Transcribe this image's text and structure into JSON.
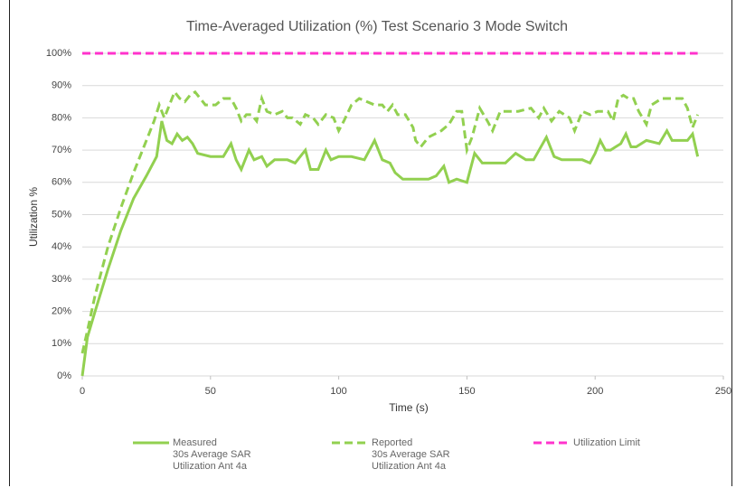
{
  "chart_data": {
    "type": "line",
    "title": "Time-Averaged Utilization (%) Test Scenario 3 Mode Switch",
    "x_label": "Time (s)",
    "y_label": "Utilization %",
    "xlim": [
      0,
      250
    ],
    "xticks": [
      0,
      50,
      100,
      150,
      200,
      250
    ],
    "ylim": [
      0,
      100
    ],
    "yticks": [
      {
        "value": 0,
        "label": "0%"
      },
      {
        "value": 10,
        "label": "10%"
      },
      {
        "value": 20,
        "label": "20%"
      },
      {
        "value": 30,
        "label": "30%"
      },
      {
        "value": 40,
        "label": "40%"
      },
      {
        "value": 50,
        "label": "50%"
      },
      {
        "value": 60,
        "label": "60%"
      },
      {
        "value": 70,
        "label": "70%"
      },
      {
        "value": 80,
        "label": "80%"
      },
      {
        "value": 90,
        "label": "90%"
      },
      {
        "value": 100,
        "label": "100%"
      }
    ],
    "grid": true,
    "series": [
      {
        "name": "Measured\n30s Average SAR\nUtilization Ant 4a",
        "color": "#92d050",
        "dashed": false,
        "x": [
          0,
          2,
          5,
          10,
          15,
          20,
          25,
          29,
          31,
          33,
          35,
          37,
          39,
          41,
          43,
          45,
          50,
          55,
          58,
          60,
          62,
          65,
          67,
          70,
          72,
          75,
          80,
          83,
          87,
          89,
          92,
          95,
          97,
          100,
          105,
          110,
          114,
          117,
          120,
          122,
          125,
          130,
          135,
          138,
          141,
          143,
          146,
          150,
          153,
          156,
          160,
          165,
          169,
          173,
          176,
          181,
          184,
          187,
          190,
          195,
          198,
          200,
          202,
          204,
          206,
          208,
          210,
          212,
          214,
          216,
          220,
          225,
          228,
          230,
          233,
          236,
          238,
          240
        ],
        "values": [
          0,
          12,
          20,
          33,
          45,
          55,
          62,
          68,
          79,
          73,
          72,
          75,
          73,
          74,
          72,
          69,
          68,
          68,
          72,
          67,
          64,
          70,
          67,
          68,
          65,
          67,
          67,
          66,
          70,
          64,
          64,
          70,
          67,
          68,
          68,
          67,
          73,
          67,
          66,
          63,
          61,
          61,
          61,
          62,
          65,
          60,
          61,
          60,
          69,
          66,
          66,
          66,
          69,
          67,
          67,
          74,
          68,
          67,
          67,
          67,
          66,
          69,
          73,
          70,
          70,
          71,
          72,
          75,
          71,
          71,
          73,
          72,
          76,
          73,
          73,
          73,
          75,
          68
        ]
      },
      {
        "name": "Reported\n30s Average SAR\nUtilization Ant 4a",
        "color": "#92d050",
        "dashed": true,
        "x": [
          0,
          2,
          5,
          10,
          15,
          20,
          25,
          28,
          30,
          32,
          34,
          36,
          38,
          40,
          42,
          44,
          46,
          48,
          52,
          55,
          58,
          60,
          62,
          64,
          66,
          68,
          70,
          72,
          75,
          78,
          80,
          82,
          85,
          87,
          90,
          92,
          95,
          98,
          100,
          102,
          105,
          108,
          111,
          114,
          117,
          119,
          121,
          123,
          126,
          129,
          130,
          132,
          135,
          140,
          143,
          146,
          148,
          150,
          152,
          155,
          158,
          160,
          163,
          167,
          170,
          175,
          178,
          180,
          183,
          186,
          190,
          192,
          195,
          198,
          201,
          205,
          207,
          209,
          211,
          213,
          215,
          217,
          220,
          222,
          226,
          230,
          234,
          236,
          238,
          240
        ],
        "values": [
          7,
          14,
          25,
          40,
          52,
          63,
          73,
          79,
          84,
          80,
          84,
          88,
          86,
          85,
          87,
          88,
          86,
          84,
          84,
          86,
          86,
          83,
          79,
          81,
          81,
          79,
          86,
          82,
          81,
          82,
          80,
          80,
          78,
          81,
          80,
          78,
          81,
          80,
          76,
          79,
          84,
          86,
          85,
          84,
          84,
          82,
          84,
          81,
          81,
          77,
          73,
          71,
          74,
          76,
          78,
          82,
          82,
          70,
          74,
          83,
          79,
          76,
          82,
          82,
          82,
          83,
          80,
          83,
          79,
          82,
          80,
          76,
          82,
          81,
          82,
          82,
          79,
          86,
          87,
          86,
          86,
          82,
          78,
          84,
          86,
          86,
          86,
          83,
          77,
          81
        ]
      },
      {
        "name": "Utilization Limit",
        "color": "#ff33cc",
        "dashed": true,
        "x": [
          0,
          240
        ],
        "values": [
          100,
          100
        ]
      }
    ]
  }
}
